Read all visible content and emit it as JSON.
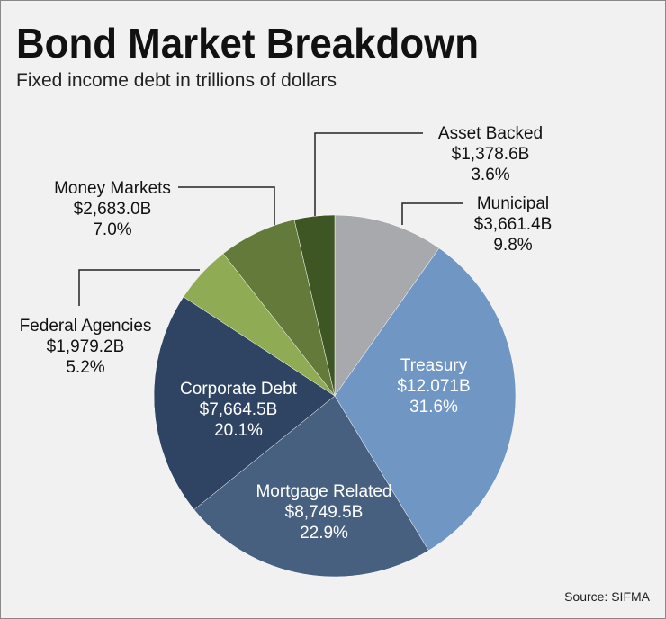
{
  "chart_data": {
    "type": "pie",
    "title": "Bond Market Breakdown",
    "subtitle": "Fixed income debt in trillions of dollars",
    "source": "Source: SIFMA",
    "categories": [
      "Municipal",
      "Treasury",
      "Mortgage Related",
      "Corporate Debt",
      "Federal Agencies",
      "Money Markets",
      "Asset Backed"
    ],
    "values": [
      9.8,
      31.6,
      22.9,
      20.1,
      5.2,
      7.0,
      3.6
    ],
    "value_labels": [
      "9.8%",
      "31.6%",
      "22.9%",
      "20.1%",
      "5.2%",
      "7.0%",
      "3.6%"
    ],
    "amount_labels": [
      "$3,661.4B",
      "$12.071B",
      "$8,749.5B",
      "$7,664.5B",
      "$1,979.2B",
      "$2,683.0B",
      "$1,378.6B"
    ],
    "colors": [
      "#a7a9ac",
      "#7096c4",
      "#47607f",
      "#2f4463",
      "#8fac55",
      "#637a3a",
      "#3e5524"
    ]
  }
}
